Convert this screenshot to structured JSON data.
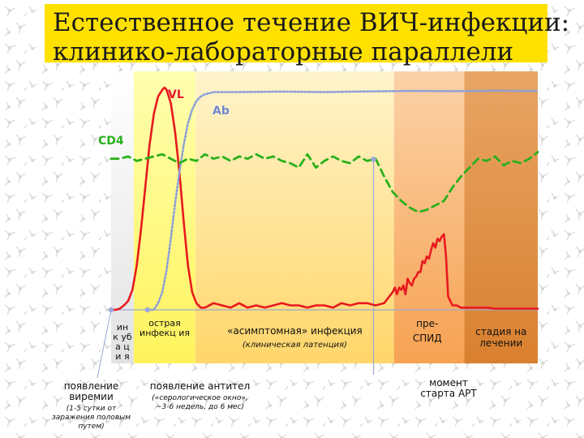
{
  "title": [
    "Естественное течение ВИЧ-инфекции:",
    "клинико-лабораторные параллели"
  ],
  "colors": {
    "title_band": "#ffe100",
    "vl": "#e8191e",
    "ab": "#8c9fd8",
    "cd4": "#29b11c",
    "phase_incubation": "#e6e6e6",
    "phase_acute": "#fff35c",
    "phase_asymptomatic": "#ffd66a",
    "phase_preaids": "#f7a252",
    "phase_treatment": "#d9802f"
  },
  "chart_data": {
    "type": "line",
    "title": "",
    "xlabel": "",
    "ylabel": "",
    "xlim": [
      0,
      100
    ],
    "ylim": [
      0,
      100
    ],
    "grid": false,
    "legend": "inline-labels",
    "phases": [
      {
        "label": "ин к уб а ци я",
        "start": 0,
        "end": 5.3
      },
      {
        "label": "острая инфекц ия",
        "start": 5.3,
        "end": 19.8
      },
      {
        "label": "«асимптомная» инфекция",
        "sublabel": "(клиническая латенция)",
        "start": 19.8,
        "end": 66.3
      },
      {
        "label": "пре- СПИД",
        "start": 66.3,
        "end": 82.8
      },
      {
        "label": "стадия на лечении",
        "start": 82.8,
        "end": 100
      }
    ],
    "series": [
      {
        "name": "VL",
        "style": "solid",
        "x": [
          0,
          1,
          2,
          3,
          4,
          5,
          6,
          7,
          8,
          9,
          10,
          11,
          12,
          12.5,
          13,
          14,
          15,
          16,
          17,
          18,
          19,
          20,
          21,
          22,
          24,
          26,
          28,
          30,
          32,
          34,
          36,
          38,
          40,
          42,
          44,
          46,
          48,
          50,
          52,
          54,
          56,
          58,
          60,
          62,
          64,
          66,
          66.5,
          67,
          67.5,
          68,
          68.5,
          69,
          69.5,
          70,
          70.5,
          71,
          71.5,
          72,
          72.5,
          73,
          73.5,
          74,
          74.5,
          75,
          75.5,
          76,
          76.5,
          77,
          77.5,
          78,
          78.5,
          79,
          80,
          81,
          82,
          84,
          86,
          88,
          90,
          92,
          94,
          96,
          98,
          100
        ],
        "y": [
          0,
          0,
          0.5,
          2,
          4,
          9,
          20,
          36,
          55,
          74,
          88,
          96,
          99,
          100,
          99,
          93,
          80,
          62,
          40,
          20,
          8,
          3,
          1,
          1,
          3,
          2,
          1,
          3,
          1,
          2,
          1,
          2,
          3,
          2,
          2,
          1,
          2,
          2,
          1,
          3,
          2,
          3,
          3,
          2,
          3,
          8,
          10,
          7,
          10,
          9,
          11,
          7,
          14,
          12,
          11,
          14,
          15,
          17,
          17,
          22,
          21,
          24,
          23,
          27,
          30,
          28,
          32,
          31,
          33,
          34,
          24,
          6,
          2,
          2,
          1,
          1,
          1,
          1,
          0.5,
          0.5,
          0.5,
          0.5,
          0.5,
          0.5
        ]
      },
      {
        "name": "Ab",
        "style": "dotted",
        "x": [
          8.5,
          10,
          11,
          12,
          13,
          14,
          15,
          16,
          17,
          18,
          19,
          20,
          21,
          22,
          23,
          24,
          26,
          30,
          40,
          50,
          60,
          70,
          80,
          90,
          100
        ],
        "y": [
          0,
          0,
          3,
          8,
          18,
          32,
          48,
          62,
          74,
          84,
          90,
          94,
          96,
          97,
          97.5,
          98,
          98,
          98,
          98.2,
          98,
          98.3,
          98.5,
          98.4,
          98.6,
          98.5
        ],
        "annotation": {
          "x": 8.5,
          "label": "появление антител",
          "note": "(«серологическое окно», ~3-6 недель, до 6 мес)"
        }
      },
      {
        "name": "CD4",
        "style": "dashed",
        "x": [
          0,
          2,
          4,
          6,
          8,
          10,
          12,
          14,
          16,
          18,
          20,
          22,
          24,
          26,
          28,
          30,
          32,
          34,
          36,
          38,
          40,
          42,
          44,
          46,
          48,
          50,
          52,
          54,
          56,
          58,
          60,
          62,
          64,
          66,
          68,
          70,
          72,
          74,
          76,
          78,
          80,
          82,
          84,
          86,
          88,
          90,
          92,
          94,
          96,
          98,
          100
        ],
        "y": [
          68,
          68,
          69,
          67,
          68,
          69,
          70,
          68,
          66,
          68,
          67,
          70,
          68,
          69,
          67,
          69,
          68,
          70,
          68,
          69,
          67,
          66,
          64,
          70,
          64,
          67,
          69,
          67,
          66,
          69,
          67,
          68,
          60,
          53,
          49,
          46,
          44,
          45,
          47,
          49,
          55,
          60,
          64,
          68,
          67,
          69,
          65,
          67,
          66,
          68,
          71
        ],
        "annotation": {
          "x": 61.5,
          "label": "момент старта АРТ"
        }
      }
    ],
    "annotations": [
      {
        "x": 0,
        "label": "появление виремии",
        "note": "(1-5 сутки от заражения половым путем)"
      }
    ]
  }
}
